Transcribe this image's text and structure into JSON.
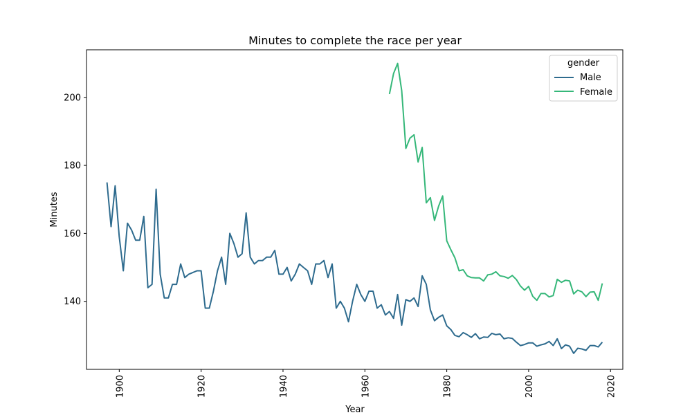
{
  "chart_data": {
    "type": "line",
    "title": "Minutes to complete the race per year",
    "xlabel": "Year",
    "ylabel": "Minutes",
    "xlim": [
      1892,
      2023
    ],
    "ylim": [
      120,
      214
    ],
    "x_ticks": [
      1900,
      1920,
      1940,
      1960,
      1980,
      2000,
      2020
    ],
    "y_ticks": [
      140,
      160,
      180,
      200
    ],
    "grid": false,
    "legend": {
      "title": "gender",
      "placement": "top-right"
    },
    "series": [
      {
        "name": "Male",
        "color": "#2e6b8e",
        "points": [
          [
            1897,
            175
          ],
          [
            1898,
            162
          ],
          [
            1899,
            174
          ],
          [
            1900,
            159
          ],
          [
            1901,
            149
          ],
          [
            1902,
            163
          ],
          [
            1903,
            161
          ],
          [
            1904,
            158
          ],
          [
            1905,
            158
          ],
          [
            1906,
            165
          ],
          [
            1907,
            144
          ],
          [
            1908,
            145
          ],
          [
            1909,
            173
          ],
          [
            1910,
            148
          ],
          [
            1911,
            141
          ],
          [
            1912,
            141
          ],
          [
            1913,
            145
          ],
          [
            1914,
            145
          ],
          [
            1915,
            151
          ],
          [
            1916,
            147
          ],
          [
            1917,
            148
          ],
          [
            1918,
            148.5
          ],
          [
            1919,
            149
          ],
          [
            1920,
            149
          ],
          [
            1921,
            138
          ],
          [
            1922,
            138
          ],
          [
            1923,
            143
          ],
          [
            1924,
            149
          ],
          [
            1925,
            153
          ],
          [
            1926,
            145
          ],
          [
            1927,
            160
          ],
          [
            1928,
            157
          ],
          [
            1929,
            153
          ],
          [
            1930,
            154
          ],
          [
            1931,
            166
          ],
          [
            1932,
            153
          ],
          [
            1933,
            151
          ],
          [
            1934,
            152
          ],
          [
            1935,
            152
          ],
          [
            1936,
            153
          ],
          [
            1937,
            153
          ],
          [
            1938,
            155
          ],
          [
            1939,
            148
          ],
          [
            1940,
            148
          ],
          [
            1941,
            150
          ],
          [
            1942,
            146
          ],
          [
            1943,
            148
          ],
          [
            1944,
            151
          ],
          [
            1945,
            150
          ],
          [
            1946,
            149
          ],
          [
            1947,
            145
          ],
          [
            1948,
            151
          ],
          [
            1949,
            151
          ],
          [
            1950,
            152
          ],
          [
            1951,
            147
          ],
          [
            1952,
            151
          ],
          [
            1953,
            138
          ],
          [
            1954,
            140
          ],
          [
            1955,
            138
          ],
          [
            1956,
            134
          ],
          [
            1957,
            140
          ],
          [
            1958,
            145
          ],
          [
            1959,
            142
          ],
          [
            1960,
            140
          ],
          [
            1961,
            143
          ],
          [
            1962,
            143
          ],
          [
            1963,
            138
          ],
          [
            1964,
            139
          ],
          [
            1965,
            136
          ],
          [
            1966,
            137
          ],
          [
            1967,
            135
          ],
          [
            1968,
            142
          ],
          [
            1969,
            133
          ],
          [
            1970,
            140.5
          ],
          [
            1971,
            140
          ],
          [
            1972,
            141
          ],
          [
            1973,
            138.5
          ],
          [
            1974,
            147.5
          ],
          [
            1975,
            145
          ],
          [
            1976,
            137.5
          ],
          [
            1977,
            134.3
          ],
          [
            1978,
            135.3
          ],
          [
            1979,
            136
          ],
          [
            1980,
            132.8
          ],
          [
            1981,
            131.7
          ],
          [
            1982,
            130
          ],
          [
            1983,
            129.6
          ],
          [
            1984,
            130.8
          ],
          [
            1985,
            130.2
          ],
          [
            1986,
            129.4
          ],
          [
            1987,
            130.5
          ],
          [
            1988,
            129
          ],
          [
            1989,
            129.5
          ],
          [
            1990,
            129.4
          ],
          [
            1991,
            130.6
          ],
          [
            1992,
            130.2
          ],
          [
            1993,
            130.4
          ],
          [
            1994,
            129
          ],
          [
            1995,
            129.3
          ],
          [
            1996,
            129.1
          ],
          [
            1997,
            128
          ],
          [
            1998,
            127
          ],
          [
            1999,
            127.3
          ],
          [
            2000,
            127.8
          ],
          [
            2001,
            127.8
          ],
          [
            2002,
            126.8
          ],
          [
            2003,
            127.2
          ],
          [
            2004,
            127.5
          ],
          [
            2005,
            128.2
          ],
          [
            2006,
            127
          ],
          [
            2007,
            129
          ],
          [
            2008,
            126.1
          ],
          [
            2009,
            127.2
          ],
          [
            2010,
            126.8
          ],
          [
            2011,
            124.7
          ],
          [
            2012,
            126.2
          ],
          [
            2013,
            126
          ],
          [
            2014,
            125.6
          ],
          [
            2015,
            127
          ],
          [
            2016,
            127
          ],
          [
            2017,
            126.6
          ],
          [
            2018,
            128
          ]
        ]
      },
      {
        "name": "Female",
        "color": "#35b779",
        "points": [
          [
            1966,
            201
          ],
          [
            1967,
            207
          ],
          [
            1968,
            210
          ],
          [
            1969,
            202
          ],
          [
            1970,
            185
          ],
          [
            1971,
            188
          ],
          [
            1972,
            189
          ],
          [
            1973,
            181
          ],
          [
            1974,
            185.3
          ],
          [
            1975,
            169
          ],
          [
            1976,
            170.5
          ],
          [
            1977,
            163.8
          ],
          [
            1978,
            168
          ],
          [
            1979,
            171
          ],
          [
            1980,
            157.8
          ],
          [
            1981,
            155.2
          ],
          [
            1982,
            152.8
          ],
          [
            1983,
            149
          ],
          [
            1984,
            149.3
          ],
          [
            1985,
            147.5
          ],
          [
            1986,
            147
          ],
          [
            1987,
            146.9
          ],
          [
            1988,
            146.9
          ],
          [
            1989,
            146
          ],
          [
            1990,
            147.8
          ],
          [
            1991,
            148
          ],
          [
            1992,
            148.7
          ],
          [
            1993,
            147.5
          ],
          [
            1994,
            147.3
          ],
          [
            1995,
            146.8
          ],
          [
            1996,
            147.6
          ],
          [
            1997,
            146.4
          ],
          [
            1998,
            144.5
          ],
          [
            1999,
            143.3
          ],
          [
            2000,
            144.4
          ],
          [
            2001,
            141.5
          ],
          [
            2002,
            140.3
          ],
          [
            2003,
            142.3
          ],
          [
            2004,
            142.3
          ],
          [
            2005,
            141.3
          ],
          [
            2006,
            141.7
          ],
          [
            2007,
            146.5
          ],
          [
            2008,
            145.6
          ],
          [
            2009,
            146.2
          ],
          [
            2010,
            146
          ],
          [
            2011,
            142.2
          ],
          [
            2012,
            143.3
          ],
          [
            2013,
            142.8
          ],
          [
            2014,
            141.4
          ],
          [
            2015,
            142.7
          ],
          [
            2016,
            142.8
          ],
          [
            2017,
            140.3
          ],
          [
            2018,
            145.3
          ]
        ]
      }
    ]
  }
}
